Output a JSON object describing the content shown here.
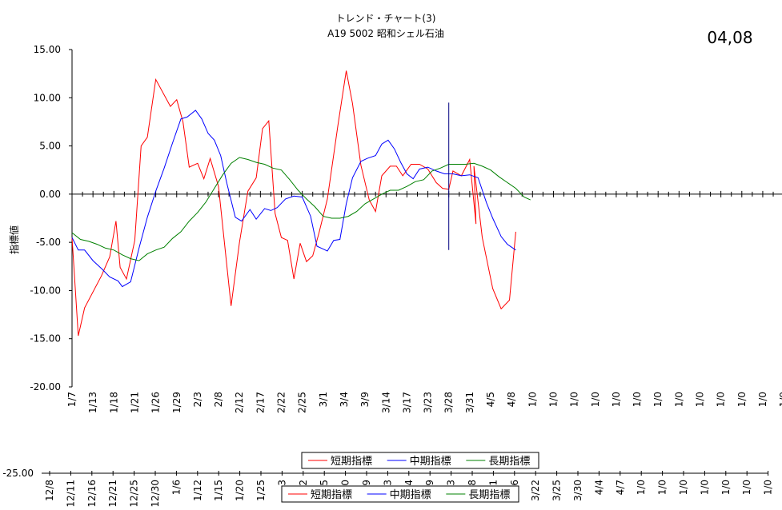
{
  "title_line1": "トレンド・チャート(3)",
  "title_line2": "A19 5002 昭和シェル石油",
  "corner_label": "04,08",
  "chart_data": {
    "type": "line",
    "title": "トレンド・チャート(3) A19 5002 昭和シェル石油",
    "ylabel": "指標値",
    "xlabel": "",
    "ylim": [
      -20,
      15
    ],
    "y_ticks": [
      "15.00",
      "10.00",
      "5.00",
      "0.00",
      "-5.00",
      "-10.00",
      "-15.00",
      "-20.00"
    ],
    "x_tick_labels": [
      "1/7",
      "1/13",
      "1/18",
      "1/21",
      "1/26",
      "1/29",
      "2/3",
      "2/8",
      "2/12",
      "2/17",
      "2/22",
      "2/25",
      "3/1",
      "3/4",
      "3/9",
      "3/14",
      "3/17",
      "3/23",
      "3/28",
      "3/31",
      "4/5",
      "4/8",
      "1/0",
      "1/0",
      "1/0",
      "1/0",
      "1/0",
      "1/0",
      "1/0",
      "1/0",
      "1/0",
      "1/0",
      "1/0",
      "1/0",
      "1/0"
    ],
    "ghost_axis": {
      "y_label": "-25.00",
      "x_tick_labels": [
        "12/8",
        "12/11",
        "12/16",
        "12/21",
        "12/25",
        "12/30",
        "1/6",
        "1/12",
        "1/15",
        "1/20",
        "1/25",
        "3",
        "2",
        "5",
        "0",
        "9",
        "3",
        "4",
        "9",
        "3",
        "8",
        "1",
        "3/16",
        "3/22",
        "3/25",
        "3/30",
        "4/4",
        "4/7",
        "1/0",
        "1/0",
        "1/0",
        "1/0",
        "1/0",
        "1/0",
        "1/0"
      ],
      "legend": [
        "短期指標",
        "中期指標",
        "長期指標"
      ]
    },
    "vertical_marker": {
      "x_index": 18.0,
      "y_top": 9.5,
      "y_bottom": -5.8
    },
    "legend": "bottom",
    "grid": false,
    "series": [
      {
        "name": "短期指標",
        "color": "#ff0000",
        "points": [
          [
            0,
            -4.5
          ],
          [
            0.3,
            -14.7
          ],
          [
            0.6,
            -11.8
          ],
          [
            1.4,
            -8.5
          ],
          [
            1.8,
            -6.5
          ],
          [
            2.1,
            -2.8
          ],
          [
            2.3,
            -7.6
          ],
          [
            2.6,
            -8.8
          ],
          [
            3.0,
            -4.8
          ],
          [
            3.3,
            5.0
          ],
          [
            3.6,
            5.9
          ],
          [
            4.0,
            11.9
          ],
          [
            4.7,
            9.1
          ],
          [
            5.0,
            9.8
          ],
          [
            5.3,
            7.5
          ],
          [
            5.6,
            2.8
          ],
          [
            6.0,
            3.2
          ],
          [
            6.3,
            1.6
          ],
          [
            6.6,
            3.7
          ],
          [
            7.0,
            0.8
          ],
          [
            7.6,
            -11.6
          ],
          [
            8.0,
            -5.0
          ],
          [
            8.4,
            0.3
          ],
          [
            8.8,
            1.7
          ],
          [
            9.1,
            6.8
          ],
          [
            9.4,
            7.6
          ],
          [
            9.7,
            -2.0
          ],
          [
            10.0,
            -4.5
          ],
          [
            10.3,
            -4.8
          ],
          [
            10.6,
            -8.8
          ],
          [
            10.9,
            -5.1
          ],
          [
            11.2,
            -7.0
          ],
          [
            11.5,
            -6.4
          ],
          [
            11.8,
            -4.0
          ],
          [
            12.2,
            -0.5
          ],
          [
            12.7,
            7.1
          ],
          [
            13.1,
            12.8
          ],
          [
            13.4,
            9.4
          ],
          [
            13.8,
            3.0
          ],
          [
            14.2,
            -0.6
          ],
          [
            14.5,
            -1.8
          ],
          [
            14.8,
            1.9
          ],
          [
            15.2,
            2.9
          ],
          [
            15.5,
            2.9
          ],
          [
            15.8,
            1.9
          ],
          [
            16.2,
            3.1
          ],
          [
            16.6,
            3.1
          ],
          [
            17.0,
            2.6
          ],
          [
            17.4,
            1.2
          ],
          [
            17.7,
            0.6
          ],
          [
            18.0,
            0.5
          ],
          [
            18.2,
            2.4
          ],
          [
            18.6,
            1.9
          ],
          [
            19.0,
            3.6
          ],
          [
            19.3,
            -3.1
          ],
          [
            19.2,
            2.9
          ],
          [
            19.6,
            -4.5
          ],
          [
            20.1,
            -9.8
          ],
          [
            20.5,
            -11.9
          ],
          [
            20.9,
            -11.0
          ],
          [
            21.2,
            -3.9
          ]
        ]
      },
      {
        "name": "中期指標",
        "color": "#0000ff",
        "points": [
          [
            0,
            -4.5
          ],
          [
            0.3,
            -5.8
          ],
          [
            0.6,
            -5.8
          ],
          [
            1.0,
            -6.9
          ],
          [
            1.4,
            -7.7
          ],
          [
            1.8,
            -8.6
          ],
          [
            2.2,
            -9.0
          ],
          [
            2.4,
            -9.6
          ],
          [
            2.8,
            -9.1
          ],
          [
            3.2,
            -5.6
          ],
          [
            3.6,
            -2.4
          ],
          [
            4.0,
            0.3
          ],
          [
            4.4,
            2.7
          ],
          [
            4.8,
            5.3
          ],
          [
            5.2,
            7.8
          ],
          [
            5.5,
            8.0
          ],
          [
            5.9,
            8.7
          ],
          [
            6.2,
            7.8
          ],
          [
            6.5,
            6.3
          ],
          [
            6.8,
            5.6
          ],
          [
            7.1,
            4.0
          ],
          [
            7.4,
            1.1
          ],
          [
            7.8,
            -2.4
          ],
          [
            8.1,
            -2.8
          ],
          [
            8.5,
            -1.6
          ],
          [
            8.8,
            -2.6
          ],
          [
            9.2,
            -1.5
          ],
          [
            9.5,
            -1.7
          ],
          [
            9.8,
            -1.4
          ],
          [
            10.2,
            -0.5
          ],
          [
            10.6,
            -0.2
          ],
          [
            11.0,
            -0.3
          ],
          [
            11.4,
            -2.3
          ],
          [
            11.7,
            -5.4
          ],
          [
            12.0,
            -5.7
          ],
          [
            12.2,
            -5.9
          ],
          [
            12.5,
            -4.8
          ],
          [
            12.8,
            -4.7
          ],
          [
            13.1,
            -1.0
          ],
          [
            13.4,
            1.7
          ],
          [
            13.8,
            3.4
          ],
          [
            14.1,
            3.7
          ],
          [
            14.5,
            4.0
          ],
          [
            14.8,
            5.2
          ],
          [
            15.1,
            5.6
          ],
          [
            15.4,
            4.7
          ],
          [
            15.7,
            3.3
          ],
          [
            16.0,
            2.1
          ],
          [
            16.3,
            1.6
          ],
          [
            16.6,
            2.6
          ],
          [
            17.0,
            2.8
          ],
          [
            17.4,
            2.4
          ],
          [
            17.8,
            2.1
          ],
          [
            18.2,
            2.1
          ],
          [
            18.6,
            1.9
          ],
          [
            19.0,
            2.0
          ],
          [
            19.4,
            1.7
          ],
          [
            19.8,
            -0.9
          ],
          [
            20.1,
            -2.5
          ],
          [
            20.5,
            -4.4
          ],
          [
            20.8,
            -5.2
          ],
          [
            21.2,
            -5.8
          ]
        ]
      },
      {
        "name": "長期指標",
        "color": "#008000",
        "points": [
          [
            0,
            -4.0
          ],
          [
            0.4,
            -4.7
          ],
          [
            0.8,
            -4.9
          ],
          [
            1.2,
            -5.2
          ],
          [
            1.6,
            -5.6
          ],
          [
            2.0,
            -5.8
          ],
          [
            2.4,
            -6.3
          ],
          [
            2.8,
            -6.7
          ],
          [
            3.2,
            -6.9
          ],
          [
            3.6,
            -6.2
          ],
          [
            4.0,
            -5.8
          ],
          [
            4.4,
            -5.5
          ],
          [
            4.8,
            -4.6
          ],
          [
            5.2,
            -3.9
          ],
          [
            5.6,
            -2.8
          ],
          [
            6.0,
            -1.9
          ],
          [
            6.4,
            -0.8
          ],
          [
            6.8,
            0.6
          ],
          [
            7.2,
            2.0
          ],
          [
            7.6,
            3.2
          ],
          [
            8.0,
            3.8
          ],
          [
            8.4,
            3.6
          ],
          [
            8.8,
            3.3
          ],
          [
            9.2,
            3.1
          ],
          [
            9.6,
            2.7
          ],
          [
            10.0,
            2.5
          ],
          [
            10.4,
            1.5
          ],
          [
            10.8,
            0.4
          ],
          [
            11.2,
            -0.5
          ],
          [
            11.6,
            -1.3
          ],
          [
            12.0,
            -2.3
          ],
          [
            12.4,
            -2.5
          ],
          [
            12.8,
            -2.5
          ],
          [
            13.2,
            -2.3
          ],
          [
            13.6,
            -1.8
          ],
          [
            14.0,
            -1.0
          ],
          [
            14.4,
            -0.5
          ],
          [
            14.8,
            0.0
          ],
          [
            15.2,
            0.4
          ],
          [
            15.6,
            0.4
          ],
          [
            16.0,
            0.8
          ],
          [
            16.4,
            1.3
          ],
          [
            16.8,
            1.5
          ],
          [
            17.2,
            2.4
          ],
          [
            17.6,
            2.7
          ],
          [
            18.0,
            3.1
          ],
          [
            18.4,
            3.1
          ],
          [
            18.8,
            3.1
          ],
          [
            19.2,
            3.2
          ],
          [
            19.6,
            2.9
          ],
          [
            20.0,
            2.5
          ],
          [
            20.4,
            1.8
          ],
          [
            20.8,
            1.2
          ],
          [
            21.2,
            0.6
          ],
          [
            21.6,
            -0.3
          ],
          [
            21.9,
            -0.6
          ]
        ]
      }
    ]
  }
}
